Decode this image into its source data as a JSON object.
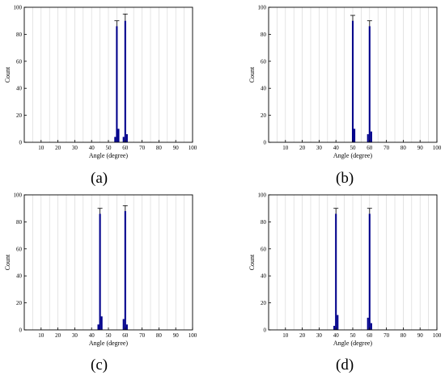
{
  "colors": {
    "bar": "#00008b",
    "axis": "#000000",
    "grid": "#d9d9d9",
    "background": "#ffffff"
  },
  "panels": [
    {
      "caption": "(a)"
    },
    {
      "caption": "(b)"
    },
    {
      "caption": "(c)"
    },
    {
      "caption": "(d)"
    }
  ],
  "chart_data": [
    {
      "type": "bar",
      "xlabel": "Angle (degree)",
      "ylabel": "Count",
      "xlim": [
        0,
        100
      ],
      "ylim": [
        0,
        100
      ],
      "xticks": [
        10,
        20,
        30,
        40,
        50,
        60,
        70,
        80,
        90,
        100
      ],
      "yticks": [
        0,
        20,
        40,
        60,
        80,
        100
      ],
      "grid": "vertical",
      "bin_width": 1,
      "x": [
        54,
        55,
        56,
        59,
        60,
        61
      ],
      "values": [
        4,
        86,
        10,
        4,
        90,
        6
      ],
      "error_bars": [
        {
          "x": 55,
          "value": 86,
          "error": 4
        },
        {
          "x": 60,
          "value": 90,
          "error": 5
        }
      ]
    },
    {
      "type": "bar",
      "xlabel": "Angle (degree)",
      "ylabel": "Count",
      "xlim": [
        0,
        100
      ],
      "ylim": [
        0,
        100
      ],
      "xticks": [
        10,
        20,
        30,
        40,
        50,
        60,
        70,
        80,
        90,
        100
      ],
      "yticks": [
        0,
        20,
        40,
        60,
        80,
        100
      ],
      "grid": "vertical",
      "bin_width": 1,
      "x": [
        50,
        51,
        59,
        60,
        61
      ],
      "values": [
        90,
        10,
        6,
        86,
        8
      ],
      "error_bars": [
        {
          "x": 50,
          "value": 90,
          "error": 4
        },
        {
          "x": 60,
          "value": 86,
          "error": 4
        }
      ]
    },
    {
      "type": "bar",
      "xlabel": "Angle (degree)",
      "ylabel": "Count",
      "xlim": [
        0,
        100
      ],
      "ylim": [
        0,
        100
      ],
      "xticks": [
        10,
        20,
        30,
        40,
        50,
        60,
        70,
        80,
        90,
        100
      ],
      "yticks": [
        0,
        20,
        40,
        60,
        80,
        100
      ],
      "grid": "vertical",
      "bin_width": 1,
      "x": [
        44,
        45,
        46,
        59,
        60,
        61
      ],
      "values": [
        4,
        86,
        10,
        8,
        88,
        4
      ],
      "error_bars": [
        {
          "x": 45,
          "value": 86,
          "error": 4
        },
        {
          "x": 60,
          "value": 88,
          "error": 4
        }
      ]
    },
    {
      "type": "bar",
      "xlabel": "Angle (degree)",
      "ylabel": "Count",
      "xlim": [
        0,
        100
      ],
      "ylim": [
        0,
        100
      ],
      "xticks": [
        10,
        20,
        30,
        40,
        50,
        60,
        70,
        80,
        90,
        100
      ],
      "yticks": [
        0,
        20,
        40,
        60,
        80,
        100
      ],
      "grid": "vertical",
      "bin_width": 1,
      "x": [
        39,
        40,
        41,
        59,
        60,
        61
      ],
      "values": [
        3,
        86,
        11,
        9,
        86,
        5
      ],
      "error_bars": [
        {
          "x": 40,
          "value": 86,
          "error": 4
        },
        {
          "x": 60,
          "value": 86,
          "error": 4
        }
      ]
    }
  ]
}
